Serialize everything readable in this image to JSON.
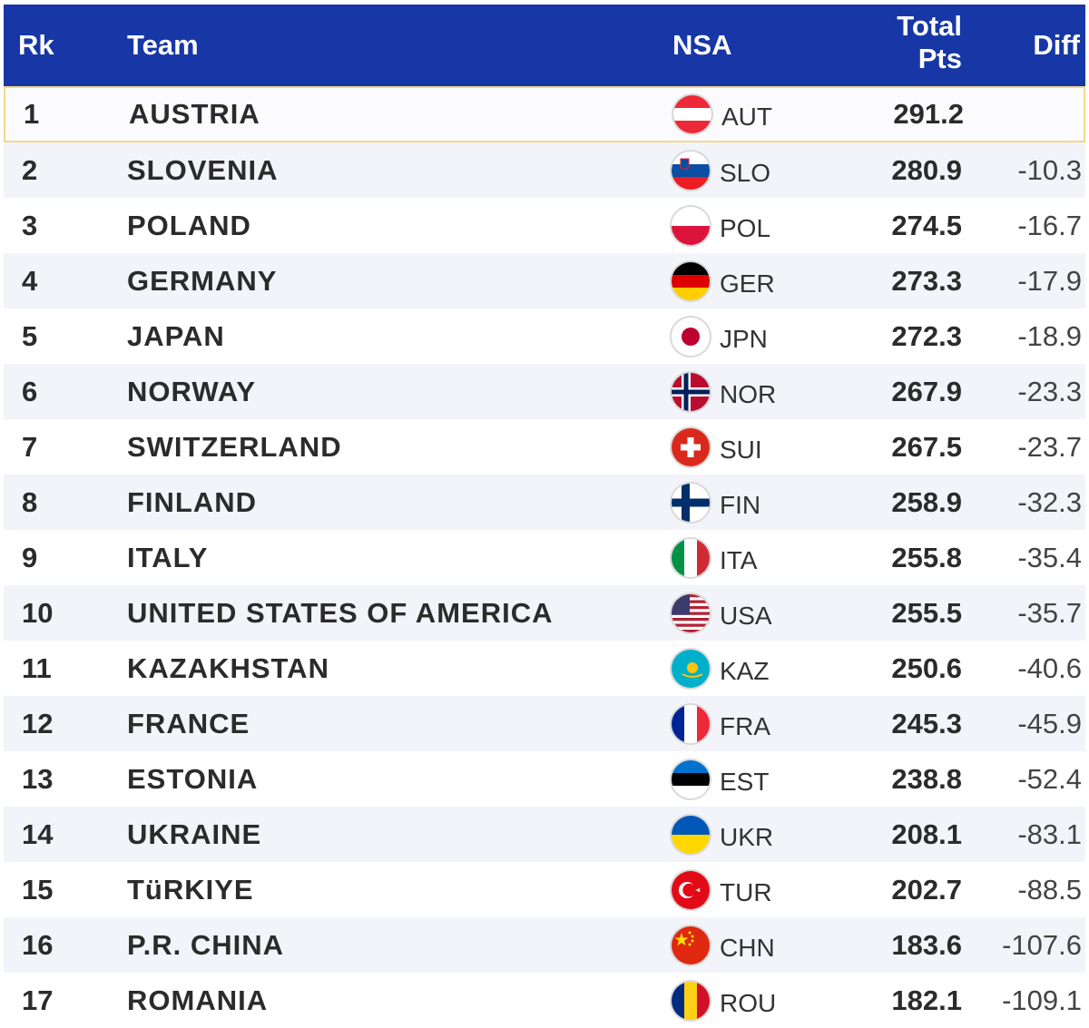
{
  "header": {
    "rk": "Rk",
    "team": "Team",
    "nsa": "NSA",
    "total_line1": "Total",
    "total_line2": "Pts",
    "diff": "Diff"
  },
  "rows": [
    {
      "rk": "1",
      "team": "AUSTRIA",
      "nsa": "AUT",
      "total": "291.2",
      "diff": "",
      "flag": "austria-flag-icon"
    },
    {
      "rk": "2",
      "team": "SLOVENIA",
      "nsa": "SLO",
      "total": "280.9",
      "diff": "-10.3",
      "flag": "slovenia-flag-icon"
    },
    {
      "rk": "3",
      "team": "POLAND",
      "nsa": "POL",
      "total": "274.5",
      "diff": "-16.7",
      "flag": "poland-flag-icon"
    },
    {
      "rk": "4",
      "team": "GERMANY",
      "nsa": "GER",
      "total": "273.3",
      "diff": "-17.9",
      "flag": "germany-flag-icon"
    },
    {
      "rk": "5",
      "team": "JAPAN",
      "nsa": "JPN",
      "total": "272.3",
      "diff": "-18.9",
      "flag": "japan-flag-icon"
    },
    {
      "rk": "6",
      "team": "NORWAY",
      "nsa": "NOR",
      "total": "267.9",
      "diff": "-23.3",
      "flag": "norway-flag-icon"
    },
    {
      "rk": "7",
      "team": "SWITZERLAND",
      "nsa": "SUI",
      "total": "267.5",
      "diff": "-23.7",
      "flag": "switzerland-flag-icon"
    },
    {
      "rk": "8",
      "team": "FINLAND",
      "nsa": "FIN",
      "total": "258.9",
      "diff": "-32.3",
      "flag": "finland-flag-icon"
    },
    {
      "rk": "9",
      "team": "ITALY",
      "nsa": "ITA",
      "total": "255.8",
      "diff": "-35.4",
      "flag": "italy-flag-icon"
    },
    {
      "rk": "10",
      "team": "UNITED STATES OF AMERICA",
      "nsa": "USA",
      "total": "255.5",
      "diff": "-35.7",
      "flag": "usa-flag-icon"
    },
    {
      "rk": "11",
      "team": "KAZAKHSTAN",
      "nsa": "KAZ",
      "total": "250.6",
      "diff": "-40.6",
      "flag": "kazakhstan-flag-icon"
    },
    {
      "rk": "12",
      "team": "FRANCE",
      "nsa": "FRA",
      "total": "245.3",
      "diff": "-45.9",
      "flag": "france-flag-icon"
    },
    {
      "rk": "13",
      "team": "ESTONIA",
      "nsa": "EST",
      "total": "238.8",
      "diff": "-52.4",
      "flag": "estonia-flag-icon"
    },
    {
      "rk": "14",
      "team": "UKRAINE",
      "nsa": "UKR",
      "total": "208.1",
      "diff": "-83.1",
      "flag": "ukraine-flag-icon"
    },
    {
      "rk": "15",
      "team": "TüRKIYE",
      "nsa": "TUR",
      "total": "202.7",
      "diff": "-88.5",
      "flag": "turkiye-flag-icon"
    },
    {
      "rk": "16",
      "team": "P.R. CHINA",
      "nsa": "CHN",
      "total": "183.6",
      "diff": "-107.6",
      "flag": "china-flag-icon"
    },
    {
      "rk": "17",
      "team": "ROMANIA",
      "nsa": "ROU",
      "total": "182.1",
      "diff": "-109.1",
      "flag": "romania-flag-icon"
    }
  ],
  "colors": {
    "header_bg": "#1737a6",
    "header_text": "#ffffff",
    "row_alt_bg": "#f3f4f9",
    "highlight_border": "#f1d98a",
    "text": "#2b2b2b"
  }
}
